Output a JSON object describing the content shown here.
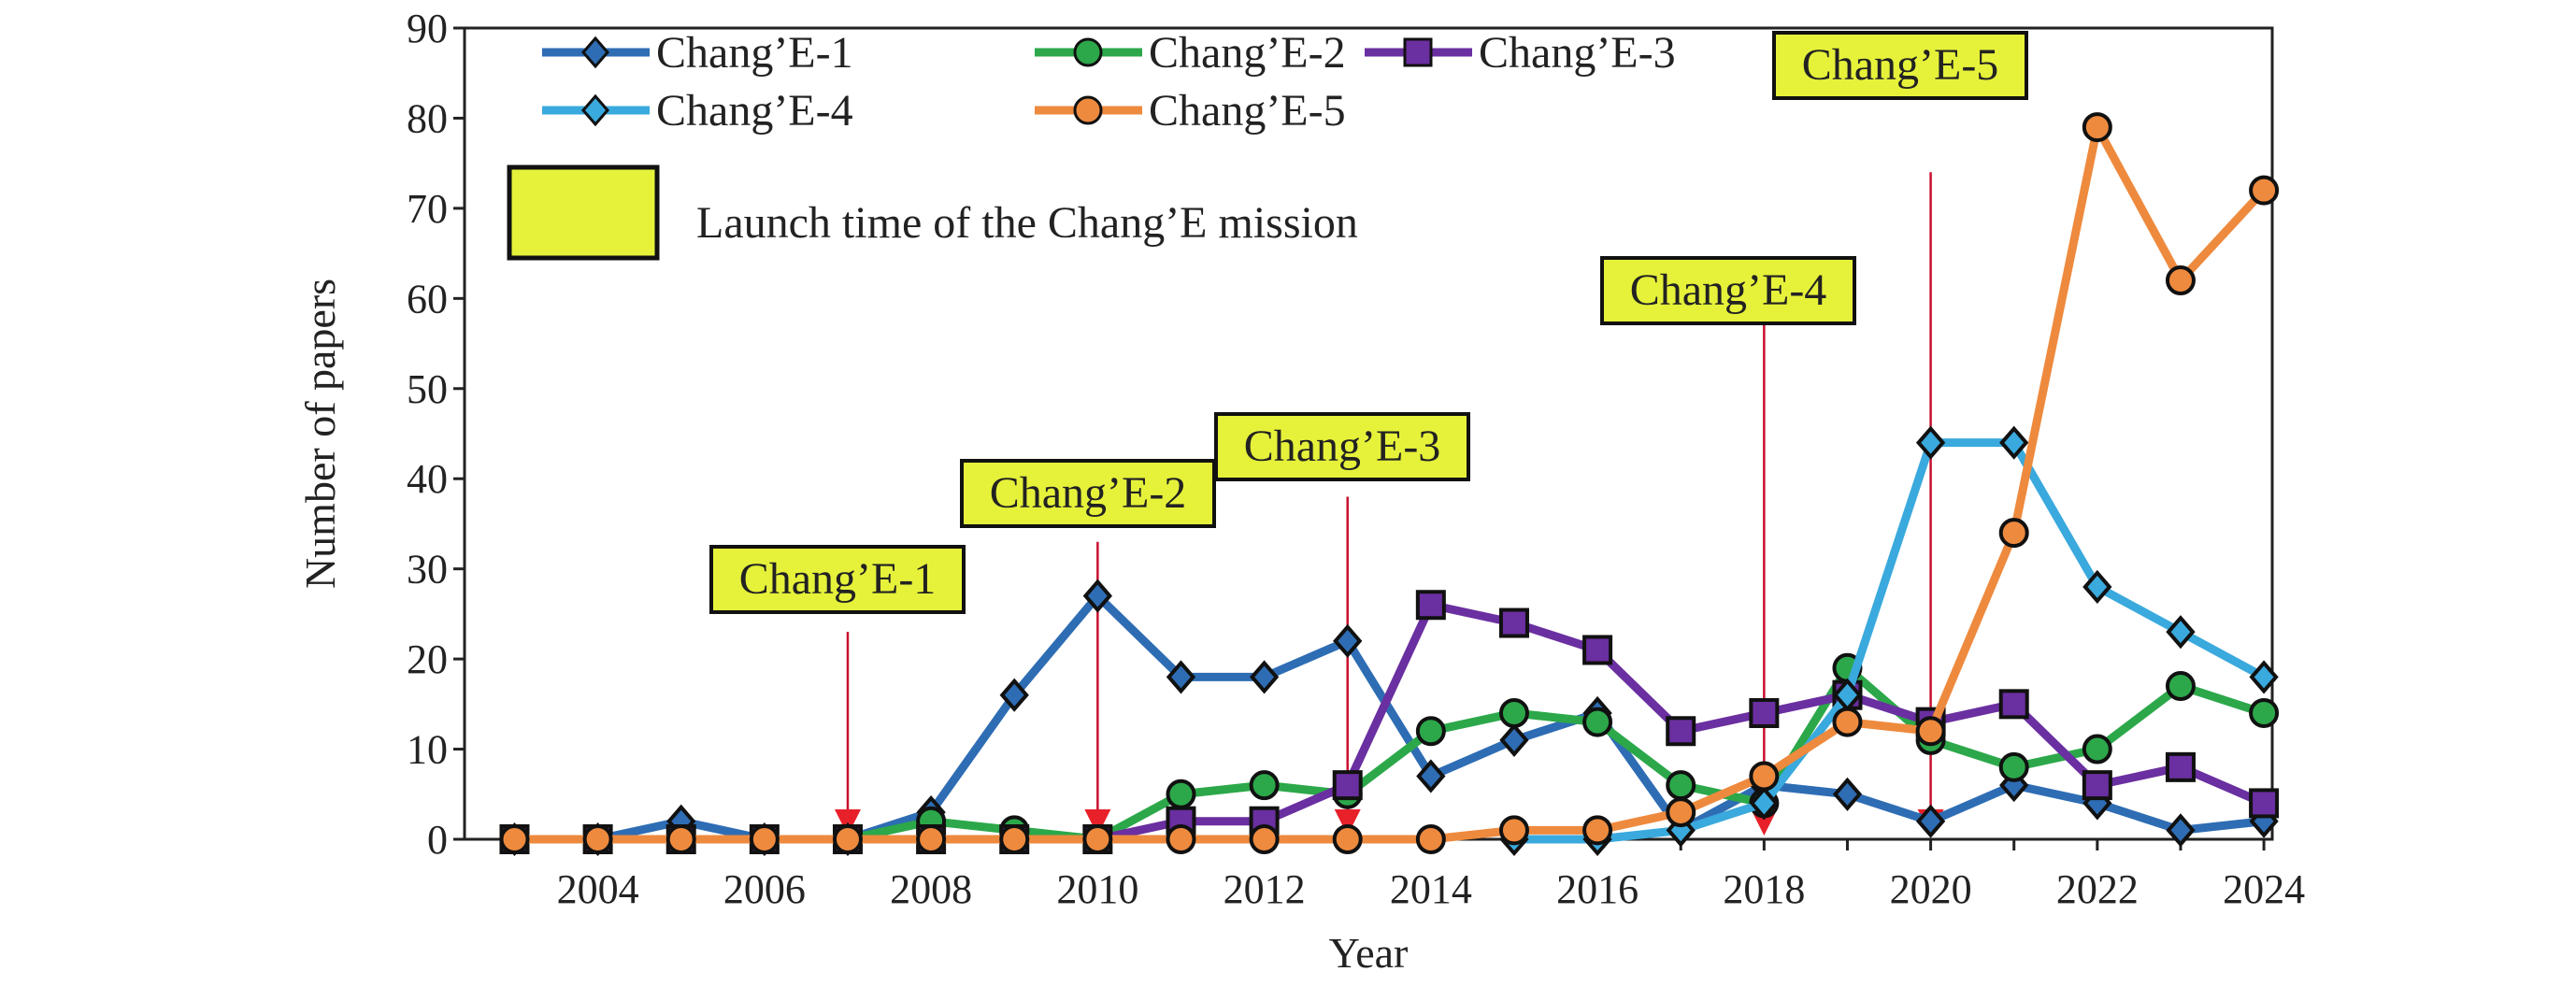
{
  "chart_data": {
    "type": "line",
    "xlabel": "Year",
    "ylabel": "Number of papers",
    "xlim": [
      2002.4,
      2024.1
    ],
    "ylim": [
      0,
      90
    ],
    "yticks": [
      0,
      10,
      20,
      30,
      40,
      50,
      60,
      70,
      80,
      90
    ],
    "xticks": [
      2004,
      2006,
      2008,
      2010,
      2012,
      2014,
      2016,
      2018,
      2020,
      2022,
      2024
    ],
    "grid": false,
    "legend_placement": "top-left",
    "series": [
      {
        "name": "Chang’E-1",
        "color": "#2e6db4",
        "marker": "diamond",
        "x": [
          2003,
          2004,
          2005,
          2006,
          2007,
          2008,
          2009,
          2010,
          2011,
          2012,
          2013,
          2014,
          2015,
          2016,
          2017,
          2018,
          2019,
          2020,
          2021,
          2022,
          2023,
          2024
        ],
        "values": [
          0,
          0,
          2,
          0,
          0,
          3,
          16,
          27,
          18,
          18,
          22,
          7,
          11,
          14,
          1,
          6,
          5,
          2,
          6,
          4,
          1,
          2
        ]
      },
      {
        "name": "Chang’E-2",
        "color": "#2ca84a",
        "marker": "circle",
        "x": [
          2003,
          2004,
          2005,
          2006,
          2007,
          2008,
          2009,
          2010,
          2011,
          2012,
          2013,
          2014,
          2015,
          2016,
          2017,
          2018,
          2019,
          2020,
          2021,
          2022,
          2023,
          2024
        ],
        "values": [
          0,
          0,
          0,
          0,
          0,
          2,
          1,
          0,
          5,
          6,
          5,
          12,
          14,
          13,
          6,
          4,
          19,
          11,
          8,
          10,
          17,
          14
        ]
      },
      {
        "name": "Chang’E-3",
        "color": "#6a2fa0",
        "marker": "square",
        "x": [
          2003,
          2004,
          2005,
          2006,
          2007,
          2008,
          2009,
          2010,
          2011,
          2012,
          2013,
          2014,
          2015,
          2016,
          2017,
          2018,
          2019,
          2020,
          2021,
          2022,
          2023,
          2024
        ],
        "values": [
          0,
          0,
          0,
          0,
          0,
          0,
          0,
          0,
          2,
          2,
          6,
          26,
          24,
          21,
          12,
          14,
          16,
          13,
          15,
          6,
          8,
          4
        ]
      },
      {
        "name": "Chang’E-4",
        "color": "#3aa9dd",
        "marker": "diamond",
        "x": [
          2015,
          2016,
          2017,
          2018,
          2019,
          2020,
          2021,
          2022,
          2023,
          2024
        ],
        "values": [
          0,
          0,
          1,
          4,
          16,
          44,
          44,
          28,
          23,
          18
        ]
      },
      {
        "name": "Chang’E-5",
        "color": "#ee8a3e",
        "marker": "circle",
        "x": [
          2003,
          2004,
          2005,
          2006,
          2007,
          2008,
          2009,
          2010,
          2011,
          2012,
          2013,
          2014,
          2015,
          2016,
          2017,
          2018,
          2019,
          2020,
          2021,
          2022,
          2023,
          2024
        ],
        "values": [
          0,
          0,
          0,
          0,
          0,
          0,
          0,
          0,
          0,
          0,
          0,
          0,
          1,
          1,
          3,
          7,
          13,
          12,
          34,
          79,
          62,
          72
        ]
      }
    ],
    "launch_legend": {
      "label": "Launch time of the Chang’E mission",
      "color": "#e6f23a"
    },
    "launches": [
      {
        "label": "Chang’E-1",
        "year": 2007
      },
      {
        "label": "Chang’E-2",
        "year": 2010
      },
      {
        "label": "Chang’E-3",
        "year": 2013
      },
      {
        "label": "Chang’E-4",
        "year": 2018
      },
      {
        "label": "Chang’E-5",
        "year": 2020
      }
    ],
    "arrow_color": "#c8102e"
  }
}
